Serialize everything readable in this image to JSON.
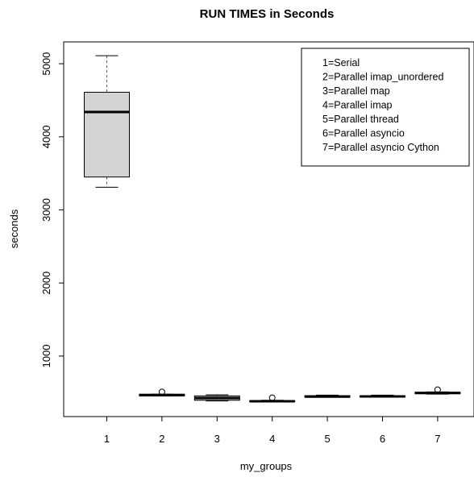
{
  "chart_data": {
    "type": "boxplot",
    "title": "RUN TIMES in Seconds",
    "xlabel": "my_groups",
    "ylabel": "seconds",
    "categories": [
      "1",
      "2",
      "3",
      "4",
      "5",
      "6",
      "7"
    ],
    "ylim": [
      0,
      5400
    ],
    "y_ticks": [
      1000,
      2000,
      3000,
      4000,
      5000
    ],
    "grid": false,
    "legend": {
      "position": "top-right",
      "entries": [
        "1=Serial",
        "2=Parallel imap_unordered",
        "3=Parallel map",
        "4=Parallel imap",
        "5=Parallel thread",
        "6=Parallel asyncio",
        "7=Parallel asyncio Cython"
      ]
    },
    "boxes": [
      {
        "category": "1",
        "min": 3310,
        "q1": 3450,
        "median": 4340,
        "q3": 4610,
        "max": 5110,
        "outliers": []
      },
      {
        "category": "2",
        "min": 455,
        "q1": 455,
        "median": 465,
        "q3": 478,
        "max": 478,
        "outliers": [
          510
        ]
      },
      {
        "category": "3",
        "min": 385,
        "q1": 395,
        "median": 425,
        "q3": 455,
        "max": 470,
        "outliers": []
      },
      {
        "category": "4",
        "min": 370,
        "q1": 375,
        "median": 382,
        "q3": 390,
        "max": 395,
        "outliers": [
          430
        ]
      },
      {
        "category": "5",
        "min": 440,
        "q1": 440,
        "median": 445,
        "q3": 458,
        "max": 465,
        "outliers": []
      },
      {
        "category": "6",
        "min": 440,
        "q1": 440,
        "median": 447,
        "q3": 457,
        "max": 465,
        "outliers": []
      },
      {
        "category": "7",
        "min": 480,
        "q1": 485,
        "median": 495,
        "q3": 505,
        "max": 510,
        "outliers": [
          540
        ]
      }
    ],
    "colors": {
      "box_fill": "#d3d3d3",
      "stroke": "#000000",
      "whisker": "#555555"
    }
  }
}
